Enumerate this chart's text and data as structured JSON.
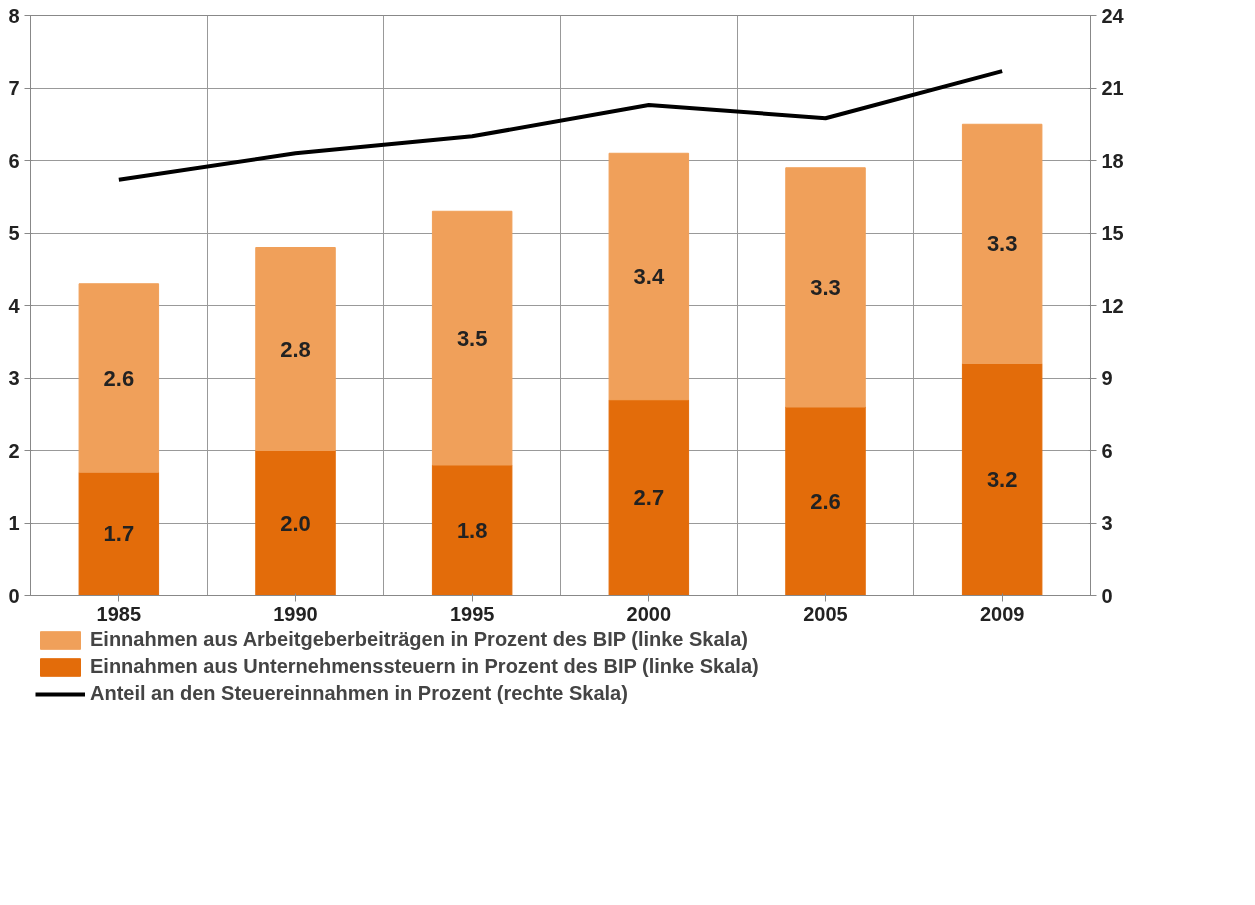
{
  "chart_data": {
    "type": "bar",
    "stacked": true,
    "categories": [
      "1985",
      "1990",
      "1995",
      "2000",
      "2005",
      "2009"
    ],
    "series": [
      {
        "name": "Einnahmen aus Unternehmenssteuern in Prozent des BIP (linke Skala)",
        "color": "#e36c0a",
        "values": [
          1.7,
          2.0,
          1.8,
          2.7,
          2.6,
          3.2
        ],
        "value_labels": [
          "1.7",
          "2.0",
          "1.8",
          "2.7",
          "2.6",
          "3.2"
        ]
      },
      {
        "name": "Einnahmen aus Arbeitgeberbeiträgen in Prozent des BIP (linke Skala)",
        "color": "#f0a05a",
        "values": [
          2.6,
          2.8,
          3.5,
          3.4,
          3.3,
          3.3
        ],
        "value_labels": [
          "2.6",
          "2.8",
          "3.5",
          "3.4",
          "3.3",
          "3.3"
        ]
      },
      {
        "name": "Anteil an den Steuereinnahmen in Prozent (rechte Skala)",
        "type": "line",
        "axis": "y2",
        "color": "#000000",
        "values": [
          17.2,
          18.3,
          19.0,
          20.3,
          19.75,
          21.7
        ]
      }
    ],
    "ylim": [
      0,
      8
    ],
    "yticks": [
      0,
      1,
      2,
      3,
      4,
      5,
      6,
      7,
      8
    ],
    "y2lim": [
      0,
      24
    ],
    "y2ticks": [
      0,
      3,
      6,
      9,
      12,
      15,
      18,
      21,
      24
    ],
    "grid": true,
    "legend": "bottom",
    "line_style": "solid"
  }
}
